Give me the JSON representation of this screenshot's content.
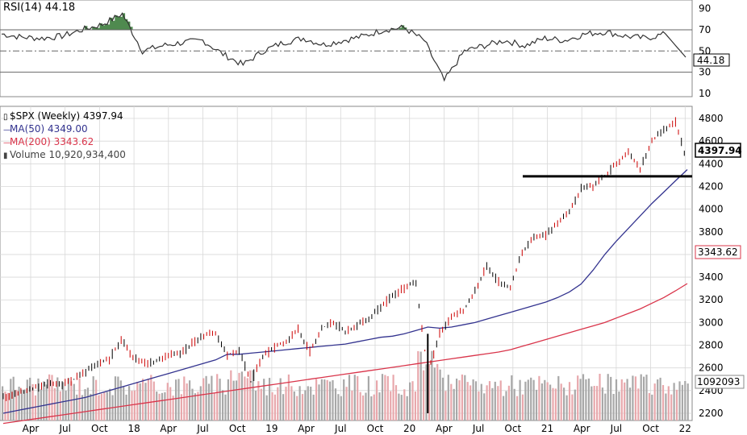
{
  "rsi_header": "RSI(14) 44.18",
  "legend": {
    "price": "$SPX (Weekly) 4397.94",
    "ma50": "MA(50) 4349.00",
    "ma200": "MA(200) 3343.62",
    "volume": "Volume 10,920,934,400"
  },
  "colors": {
    "price_up": "#000000",
    "price_down": "#cc0000",
    "ma50": "#33338f",
    "ma200": "#d9344a",
    "volume_up": "#a8a8a8",
    "volume_down": "#e8a8ac",
    "rsi_fill": "#4f8a4f",
    "grid": "#d8d8d8"
  },
  "chart_data": [
    {
      "type": "line",
      "title": "RSI(14)",
      "y_axis": {
        "min": 10,
        "max": 95,
        "ticks": [
          "90",
          "70",
          "50",
          "30",
          "10"
        ]
      },
      "levels": [
        70,
        50,
        30
      ],
      "current_value_label": "44.18",
      "x": [
        "2017-03",
        "2017-05",
        "2017-07",
        "2017-09",
        "2017-11",
        "2018-01",
        "2018-02",
        "2018-03",
        "2018-05",
        "2018-07",
        "2018-09",
        "2018-10",
        "2018-12",
        "2019-01",
        "2019-03",
        "2019-05",
        "2019-06",
        "2019-08",
        "2019-10",
        "2019-12",
        "2020-01",
        "2020-02",
        "2020-03",
        "2020-04",
        "2020-06",
        "2020-08",
        "2020-10",
        "2020-12",
        "2021-02",
        "2021-04",
        "2021-06",
        "2021-08",
        "2021-10",
        "2021-12",
        "2022-01"
      ],
      "series": [
        {
          "values": [
            66,
            63,
            62,
            64,
            70,
            75,
            85,
            50,
            55,
            58,
            60,
            47,
            37,
            50,
            58,
            62,
            56,
            60,
            64,
            70,
            72,
            60,
            22,
            50,
            55,
            60,
            55,
            62,
            60,
            66,
            68,
            64,
            62,
            66,
            44.18
          ]
        }
      ]
    },
    {
      "type": "bar",
      "title": "$SPX (Weekly)",
      "x_axis": {
        "ticks": [
          "Apr",
          "Jul",
          "Oct",
          "18",
          "Apr",
          "Jul",
          "Oct",
          "19",
          "Apr",
          "Jul",
          "Oct",
          "20",
          "Apr",
          "Jul",
          "Oct",
          "21",
          "Apr",
          "Jul",
          "Oct",
          "22"
        ]
      },
      "y_axis": {
        "min": 2150,
        "max": 4850,
        "ticks": [
          "4800",
          "4600",
          "4400",
          "4200",
          "4000",
          "3800",
          "3600",
          "3400",
          "3200",
          "3000",
          "2800",
          "2600",
          "2400",
          "2200"
        ]
      },
      "horizontal_line": 4290,
      "price_label": "4397.94",
      "ma200_label": "3343.62",
      "volume_label": "1092093",
      "x": [
        "2017-03",
        "2017-04",
        "2017-05",
        "2017-06",
        "2017-07",
        "2017-08",
        "2017-09",
        "2017-10",
        "2017-11",
        "2017-12",
        "2018-01",
        "2018-02",
        "2018-03",
        "2018-04",
        "2018-05",
        "2018-06",
        "2018-07",
        "2018-08",
        "2018-09",
        "2018-10",
        "2018-11",
        "2018-12",
        "2019-01",
        "2019-02",
        "2019-03",
        "2019-04",
        "2019-05",
        "2019-06",
        "2019-07",
        "2019-08",
        "2019-09",
        "2019-10",
        "2019-11",
        "2019-12",
        "2020-01",
        "2020-02",
        "2020-03",
        "2020-04",
        "2020-05",
        "2020-06",
        "2020-07",
        "2020-08",
        "2020-09",
        "2020-10",
        "2020-11",
        "2020-12",
        "2021-01",
        "2021-02",
        "2021-03",
        "2021-04",
        "2021-05",
        "2021-06",
        "2021-07",
        "2021-08",
        "2021-09",
        "2021-10",
        "2021-11",
        "2021-12",
        "2022-01"
      ],
      "series": [
        {
          "name": "$SPX (Weekly)",
          "values": [
            2340,
            2370,
            2400,
            2430,
            2470,
            2450,
            2500,
            2570,
            2640,
            2680,
            2850,
            2700,
            2640,
            2660,
            2720,
            2730,
            2810,
            2890,
            2910,
            2720,
            2750,
            2480,
            2700,
            2780,
            2830,
            2940,
            2750,
            2950,
            3000,
            2920,
            2980,
            3040,
            3140,
            3230,
            3300,
            3360,
            2550,
            2900,
            3050,
            3100,
            3270,
            3500,
            3360,
            3300,
            3620,
            3750,
            3770,
            3880,
            3970,
            4180,
            4200,
            4300,
            4400,
            4520,
            4350,
            4600,
            4700,
            4770,
            4397.94
          ]
        },
        {
          "name": "MA(50)",
          "values": [
            2200,
            2220,
            2240,
            2260,
            2280,
            2300,
            2320,
            2340,
            2370,
            2400,
            2430,
            2460,
            2490,
            2520,
            2550,
            2580,
            2610,
            2640,
            2670,
            2720,
            2720,
            2730,
            2740,
            2750,
            2760,
            2770,
            2780,
            2790,
            2800,
            2810,
            2830,
            2850,
            2870,
            2880,
            2900,
            2930,
            2960,
            2950,
            2960,
            2980,
            3000,
            3030,
            3060,
            3090,
            3120,
            3150,
            3180,
            3220,
            3270,
            3340,
            3460,
            3600,
            3720,
            3830,
            3940,
            4050,
            4150,
            4250,
            4349
          ]
        },
        {
          "name": "MA(200)",
          "values": [
            2110,
            2125,
            2140,
            2155,
            2170,
            2185,
            2200,
            2215,
            2230,
            2245,
            2260,
            2275,
            2290,
            2305,
            2320,
            2335,
            2350,
            2365,
            2380,
            2395,
            2410,
            2425,
            2440,
            2455,
            2470,
            2485,
            2500,
            2515,
            2530,
            2545,
            2560,
            2575,
            2590,
            2605,
            2620,
            2635,
            2650,
            2665,
            2680,
            2695,
            2710,
            2725,
            2740,
            2760,
            2790,
            2820,
            2850,
            2880,
            2910,
            2940,
            2970,
            3000,
            3040,
            3080,
            3120,
            3170,
            3220,
            3280,
            3343.62
          ]
        }
      ]
    }
  ]
}
